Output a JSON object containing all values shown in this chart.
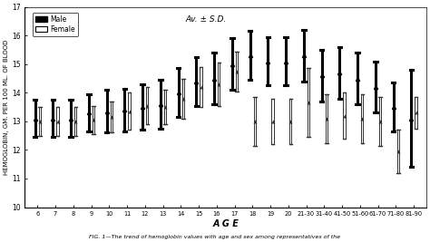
{
  "age_labels": [
    "6",
    "7",
    "8",
    "9",
    "10",
    "11",
    "12",
    "13",
    "14",
    "15",
    "16",
    "17",
    "18",
    "19",
    "20",
    "21-30",
    "31-40",
    "41-50",
    "51-60",
    "61-70",
    "71-80",
    "81-90"
  ],
  "male_mean": [
    13.1,
    13.1,
    13.1,
    13.3,
    13.35,
    13.4,
    13.5,
    13.6,
    14.0,
    14.4,
    14.5,
    15.0,
    15.3,
    15.1,
    15.1,
    15.3,
    14.6,
    14.7,
    14.5,
    14.2,
    13.5,
    13.1
  ],
  "male_sd": [
    0.65,
    0.65,
    0.65,
    0.65,
    0.75,
    0.75,
    0.8,
    0.85,
    0.85,
    0.85,
    0.9,
    0.9,
    0.85,
    0.85,
    0.85,
    0.9,
    0.9,
    0.9,
    0.9,
    0.9,
    0.85,
    1.7
  ],
  "female_mean": [
    13.0,
    13.0,
    13.0,
    13.05,
    13.15,
    13.35,
    13.55,
    13.5,
    13.8,
    14.2,
    14.3,
    14.75,
    13.0,
    13.0,
    13.0,
    13.65,
    13.1,
    13.2,
    13.1,
    13.0,
    11.95,
    13.3
  ],
  "female_sd": [
    0.5,
    0.5,
    0.5,
    0.5,
    0.55,
    0.65,
    0.65,
    0.6,
    0.7,
    0.7,
    0.75,
    0.7,
    0.85,
    0.8,
    0.8,
    1.2,
    0.85,
    0.8,
    0.85,
    0.85,
    0.75,
    0.55
  ],
  "ylabel": "HEMOGLOBIN, GM. PER 100 ML. OF BLOOD",
  "xlabel": "A G E",
  "ylim": [
    10,
    17
  ],
  "yticks": [
    10,
    11,
    12,
    13,
    14,
    15,
    16,
    17
  ],
  "annotation": "Av. ± S.D.",
  "legend_male": "Male",
  "legend_female": "Female",
  "bg_color": "#ffffff",
  "male_color": "#000000",
  "caption": "FIG. 1—The trend of hemoglobin values with age and sex among representatives of the"
}
